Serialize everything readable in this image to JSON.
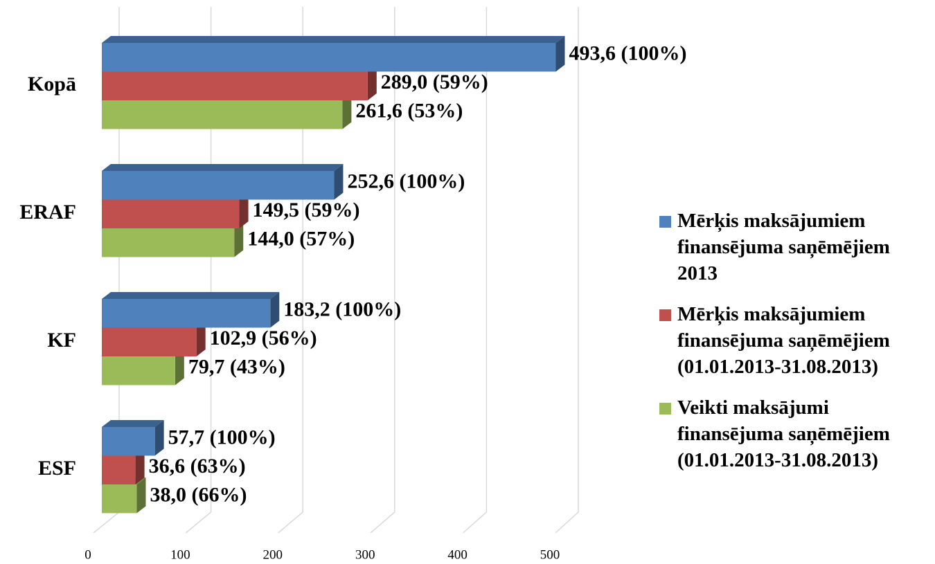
{
  "chart_data": {
    "type": "bar3d",
    "orientation": "horizontal",
    "categories": [
      "Kopā",
      "ERAF",
      "KF",
      "ESF"
    ],
    "series": [
      {
        "name": "Mērķis maksājumiem finansējuma saņēmējiem 2013",
        "color": "#4f81bd",
        "values": [
          493.6,
          252.6,
          183.2,
          57.7
        ],
        "value_labels": [
          "493,6 (100%)",
          "252,6 (100%)",
          "183,2 (100%)",
          "57,7 (100%)"
        ]
      },
      {
        "name": "Mērķis maksājumiem finansējuma saņēmējiem (01.01.2013-31.08.2013)",
        "color": "#c0504d",
        "values": [
          289.0,
          149.5,
          102.9,
          36.6
        ],
        "value_labels": [
          "289,0 (59%)",
          "149,5 (59%)",
          "102,9 (56%)",
          "36,6 (63%)"
        ]
      },
      {
        "name": "Veikti maksājumi finansējuma saņēmējiem (01.01.2013-31.08.2013)",
        "color": "#9bbb59",
        "values": [
          261.6,
          144.0,
          79.7,
          38.0
        ],
        "value_labels": [
          "261,6 (53%)",
          "144,0 (57%)",
          "79,7 (43%)",
          "38,0 (66%)"
        ]
      }
    ],
    "xlim": [
      0,
      500
    ],
    "xticks": [
      0,
      100,
      200,
      300,
      400,
      500
    ],
    "grid": true,
    "legend": "right"
  }
}
